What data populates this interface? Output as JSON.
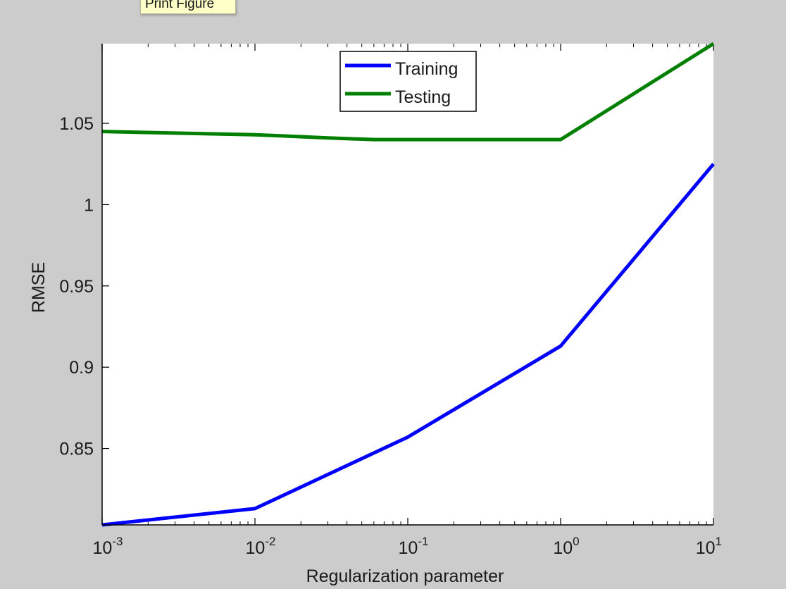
{
  "tooltip": {
    "text": "Print Figure"
  },
  "colors": {
    "background": "#cccccc",
    "axes_bg": "#ffffff",
    "training": "#0000ff",
    "testing": "#007f00",
    "tooltip_bg": "#ffffc8"
  },
  "chart_data": {
    "type": "line",
    "xscale": "log",
    "xlim": [
      0.001,
      10
    ],
    "ylim": [
      0.803,
      1.099
    ],
    "xlabel": "Regularization parameter",
    "ylabel": "RMSE",
    "grid": false,
    "legend_position": "top-center",
    "xticks": [
      {
        "base": "10",
        "exp": "-3",
        "value": 0.001
      },
      {
        "base": "10",
        "exp": "-2",
        "value": 0.01
      },
      {
        "base": "10",
        "exp": "-1",
        "value": 0.1
      },
      {
        "base": "10",
        "exp": "0",
        "value": 1
      },
      {
        "base": "10",
        "exp": "1",
        "value": 10
      }
    ],
    "yticks": [
      {
        "label": "0.85",
        "value": 0.85
      },
      {
        "label": "0.9",
        "value": 0.9
      },
      {
        "label": "0.95",
        "value": 0.95
      },
      {
        "label": "1",
        "value": 1.0
      },
      {
        "label": "1.05",
        "value": 1.05
      }
    ],
    "series": [
      {
        "name": "Training",
        "color": "#0000ff",
        "x": [
          0.001,
          0.01,
          0.1,
          1,
          10
        ],
        "y": [
          0.803,
          0.813,
          0.857,
          0.913,
          1.025
        ]
      },
      {
        "name": "Testing",
        "color": "#007f00",
        "x": [
          0.001,
          0.003,
          0.01,
          0.03,
          0.06,
          0.1,
          1,
          10
        ],
        "y": [
          1.045,
          1.044,
          1.043,
          1.041,
          1.04,
          1.04,
          1.04,
          1.099
        ]
      }
    ]
  }
}
